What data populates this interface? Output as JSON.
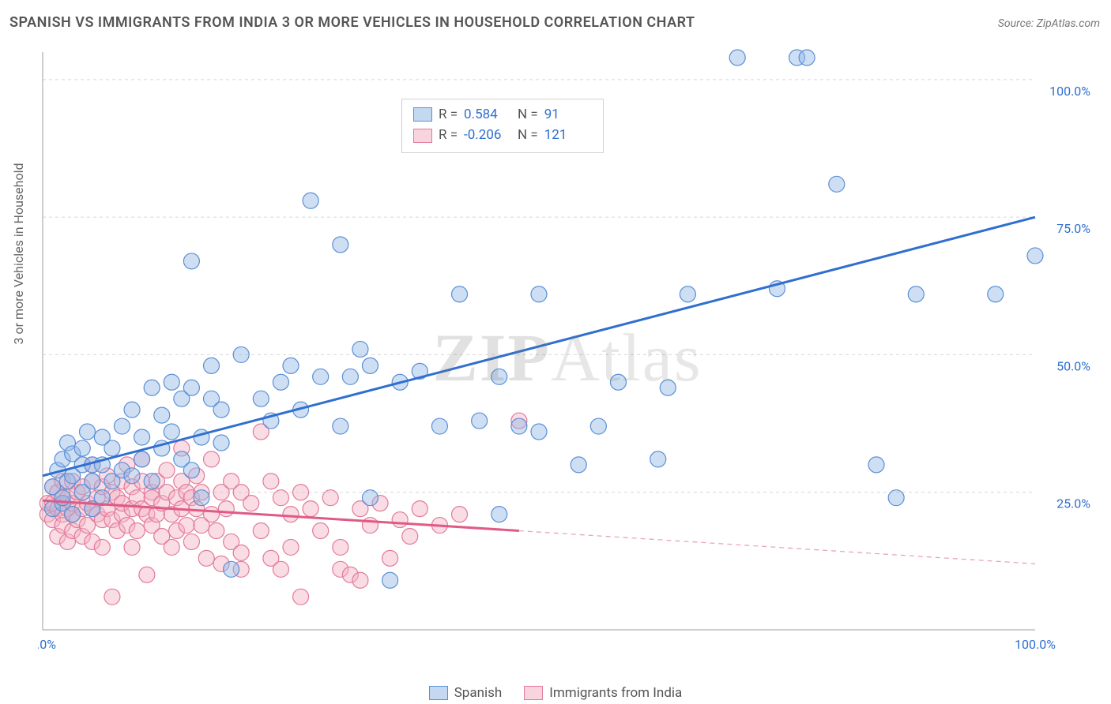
{
  "title": "SPANISH VS IMMIGRANTS FROM INDIA 3 OR MORE VEHICLES IN HOUSEHOLD CORRELATION CHART",
  "source_label": "Source: ZipAtlas.com",
  "y_axis_label": "3 or more Vehicles in Household",
  "watermark": {
    "bold": "ZIP",
    "rest": "Atlas"
  },
  "chart": {
    "type": "scatter",
    "background_color": "#ffffff",
    "grid_color": "#d7d7d7",
    "axis_color": "#bdbdbd",
    "xlim": [
      0,
      100
    ],
    "ylim": [
      0,
      105
    ],
    "x_ticks": [
      {
        "v": 0,
        "label": "0.0%"
      },
      {
        "v": 100,
        "label": "100.0%"
      }
    ],
    "y_ticks": [
      {
        "v": 25,
        "label": "25.0%"
      },
      {
        "v": 50,
        "label": "50.0%"
      },
      {
        "v": 75,
        "label": "75.0%"
      },
      {
        "v": 100,
        "label": "100.0%"
      }
    ],
    "marker_radius": 10,
    "series": [
      {
        "id": "spanish",
        "label": "Spanish",
        "color_fill": "rgba(147,184,231,0.45)",
        "color_stroke": "#5a8fd6",
        "R": "0.584",
        "N": "91",
        "trend": {
          "x1": 0,
          "y1": 28,
          "x2": 100,
          "y2": 75,
          "color": "#2f6fd0",
          "width": 3
        },
        "points": [
          [
            1,
            22
          ],
          [
            1,
            26
          ],
          [
            1.5,
            29
          ],
          [
            2,
            23
          ],
          [
            2,
            31
          ],
          [
            2,
            24
          ],
          [
            2.5,
            27
          ],
          [
            2.5,
            34
          ],
          [
            3,
            32
          ],
          [
            3,
            21
          ],
          [
            3,
            28
          ],
          [
            4,
            30
          ],
          [
            4,
            25
          ],
          [
            4,
            33
          ],
          [
            4.5,
            36
          ],
          [
            5,
            30
          ],
          [
            5,
            22
          ],
          [
            5,
            27
          ],
          [
            6,
            30
          ],
          [
            6,
            35
          ],
          [
            6,
            24
          ],
          [
            7,
            33
          ],
          [
            7,
            27
          ],
          [
            8,
            37
          ],
          [
            8,
            29
          ],
          [
            9,
            28
          ],
          [
            9,
            40
          ],
          [
            10,
            35
          ],
          [
            10,
            31
          ],
          [
            11,
            44
          ],
          [
            11,
            27
          ],
          [
            12,
            39
          ],
          [
            12,
            33
          ],
          [
            13,
            45
          ],
          [
            13,
            36
          ],
          [
            14,
            31
          ],
          [
            14,
            42
          ],
          [
            15,
            44
          ],
          [
            15,
            29
          ],
          [
            15,
            67
          ],
          [
            16,
            24
          ],
          [
            16,
            35
          ],
          [
            17,
            42
          ],
          [
            17,
            48
          ],
          [
            18,
            40
          ],
          [
            18,
            34
          ],
          [
            19,
            11
          ],
          [
            20,
            50
          ],
          [
            22,
            42
          ],
          [
            23,
            38
          ],
          [
            24,
            45
          ],
          [
            25,
            48
          ],
          [
            26,
            40
          ],
          [
            27,
            78
          ],
          [
            28,
            46
          ],
          [
            30,
            70
          ],
          [
            30,
            37
          ],
          [
            31,
            46
          ],
          [
            32,
            51
          ],
          [
            33,
            48
          ],
          [
            33,
            24
          ],
          [
            35,
            9
          ],
          [
            36,
            45
          ],
          [
            38,
            47
          ],
          [
            40,
            37
          ],
          [
            42,
            61
          ],
          [
            44,
            38
          ],
          [
            46,
            21
          ],
          [
            46,
            46
          ],
          [
            48,
            37
          ],
          [
            50,
            61
          ],
          [
            50,
            36
          ],
          [
            54,
            30
          ],
          [
            56,
            37
          ],
          [
            58,
            45
          ],
          [
            62,
            31
          ],
          [
            63,
            44
          ],
          [
            65,
            61
          ],
          [
            70,
            104
          ],
          [
            74,
            62
          ],
          [
            76,
            104
          ],
          [
            77,
            104
          ],
          [
            80,
            81
          ],
          [
            84,
            30
          ],
          [
            86,
            24
          ],
          [
            88,
            61
          ],
          [
            96,
            61
          ],
          [
            100,
            68
          ]
        ]
      },
      {
        "id": "india",
        "label": "Immigrants from India",
        "color_fill": "rgba(243,177,195,0.45)",
        "color_stroke": "#e27a9a",
        "R": "-0.206",
        "N": "121",
        "trend": {
          "x1": 0,
          "y1": 23.5,
          "x2": 48,
          "y2": 18,
          "color": "#e05a86",
          "width": 3
        },
        "trend_extension": {
          "x1": 48,
          "y1": 18,
          "x2": 100,
          "y2": 12,
          "color": "#e9a4b8",
          "width": 1.3,
          "dash": "6 5"
        },
        "points": [
          [
            0.5,
            21
          ],
          [
            0.5,
            23
          ],
          [
            1,
            20
          ],
          [
            1,
            23
          ],
          [
            1,
            26
          ],
          [
            1.5,
            17
          ],
          [
            1.5,
            22
          ],
          [
            1.5,
            25
          ],
          [
            2,
            21
          ],
          [
            2,
            24
          ],
          [
            2,
            19
          ],
          [
            2,
            27
          ],
          [
            2.5,
            16
          ],
          [
            2.5,
            22
          ],
          [
            2.5,
            24
          ],
          [
            3,
            21
          ],
          [
            3,
            23
          ],
          [
            3,
            27
          ],
          [
            3,
            18
          ],
          [
            3.5,
            25
          ],
          [
            3.5,
            20
          ],
          [
            4,
            22
          ],
          [
            4,
            26
          ],
          [
            4,
            17
          ],
          [
            4.5,
            23
          ],
          [
            4.5,
            19
          ],
          [
            5,
            22
          ],
          [
            5,
            30
          ],
          [
            5,
            27
          ],
          [
            5,
            16
          ],
          [
            5.5,
            21
          ],
          [
            5.5,
            24
          ],
          [
            6,
            20
          ],
          [
            6,
            15
          ],
          [
            6,
            26
          ],
          [
            6.5,
            22
          ],
          [
            6.5,
            28
          ],
          [
            7,
            25
          ],
          [
            7,
            20
          ],
          [
            7,
            6
          ],
          [
            7.5,
            24
          ],
          [
            7.5,
            18
          ],
          [
            8,
            21
          ],
          [
            8,
            27
          ],
          [
            8,
            23
          ],
          [
            8.5,
            19
          ],
          [
            8.5,
            30
          ],
          [
            9,
            26
          ],
          [
            9,
            22
          ],
          [
            9,
            15
          ],
          [
            9.5,
            24
          ],
          [
            9.5,
            18
          ],
          [
            10,
            27
          ],
          [
            10,
            22
          ],
          [
            10,
            31
          ],
          [
            10.5,
            10
          ],
          [
            10.5,
            21
          ],
          [
            11,
            25
          ],
          [
            11,
            19
          ],
          [
            11,
            24
          ],
          [
            11.5,
            27
          ],
          [
            11.5,
            21
          ],
          [
            12,
            23
          ],
          [
            12,
            17
          ],
          [
            12.5,
            25
          ],
          [
            12.5,
            29
          ],
          [
            13,
            21
          ],
          [
            13,
            15
          ],
          [
            13.5,
            24
          ],
          [
            13.5,
            18
          ],
          [
            14,
            27
          ],
          [
            14,
            22
          ],
          [
            14,
            33
          ],
          [
            14.5,
            19
          ],
          [
            14.5,
            25
          ],
          [
            15,
            24
          ],
          [
            15,
            16
          ],
          [
            15.5,
            22
          ],
          [
            15.5,
            28
          ],
          [
            16,
            19
          ],
          [
            16,
            25
          ],
          [
            16.5,
            13
          ],
          [
            17,
            21
          ],
          [
            17,
            31
          ],
          [
            17.5,
            18
          ],
          [
            18,
            25
          ],
          [
            18,
            12
          ],
          [
            18.5,
            22
          ],
          [
            19,
            27
          ],
          [
            19,
            16
          ],
          [
            20,
            11
          ],
          [
            20,
            25
          ],
          [
            20,
            14
          ],
          [
            21,
            23
          ],
          [
            22,
            18
          ],
          [
            22,
            36
          ],
          [
            23,
            27
          ],
          [
            23,
            13
          ],
          [
            24,
            11
          ],
          [
            24,
            24
          ],
          [
            25,
            21
          ],
          [
            25,
            15
          ],
          [
            26,
            25
          ],
          [
            26,
            6
          ],
          [
            27,
            22
          ],
          [
            28,
            18
          ],
          [
            29,
            24
          ],
          [
            30,
            11
          ],
          [
            30,
            15
          ],
          [
            31,
            10
          ],
          [
            32,
            22
          ],
          [
            32,
            9
          ],
          [
            33,
            19
          ],
          [
            34,
            23
          ],
          [
            35,
            13
          ],
          [
            36,
            20
          ],
          [
            37,
            17
          ],
          [
            38,
            22
          ],
          [
            40,
            19
          ],
          [
            42,
            21
          ],
          [
            48,
            38
          ]
        ]
      }
    ]
  },
  "stats_box": {
    "rows": [
      {
        "sw": "b",
        "r_label": "R =",
        "r_val": "0.584",
        "n_label": "N =",
        "n_val": "91"
      },
      {
        "sw": "p",
        "r_label": "R =",
        "r_val": "-0.206",
        "n_label": "N =",
        "n_val": "121"
      }
    ]
  },
  "legend": {
    "items": [
      {
        "sw": "b",
        "label": "Spanish"
      },
      {
        "sw": "p",
        "label": "Immigrants from India"
      }
    ]
  }
}
